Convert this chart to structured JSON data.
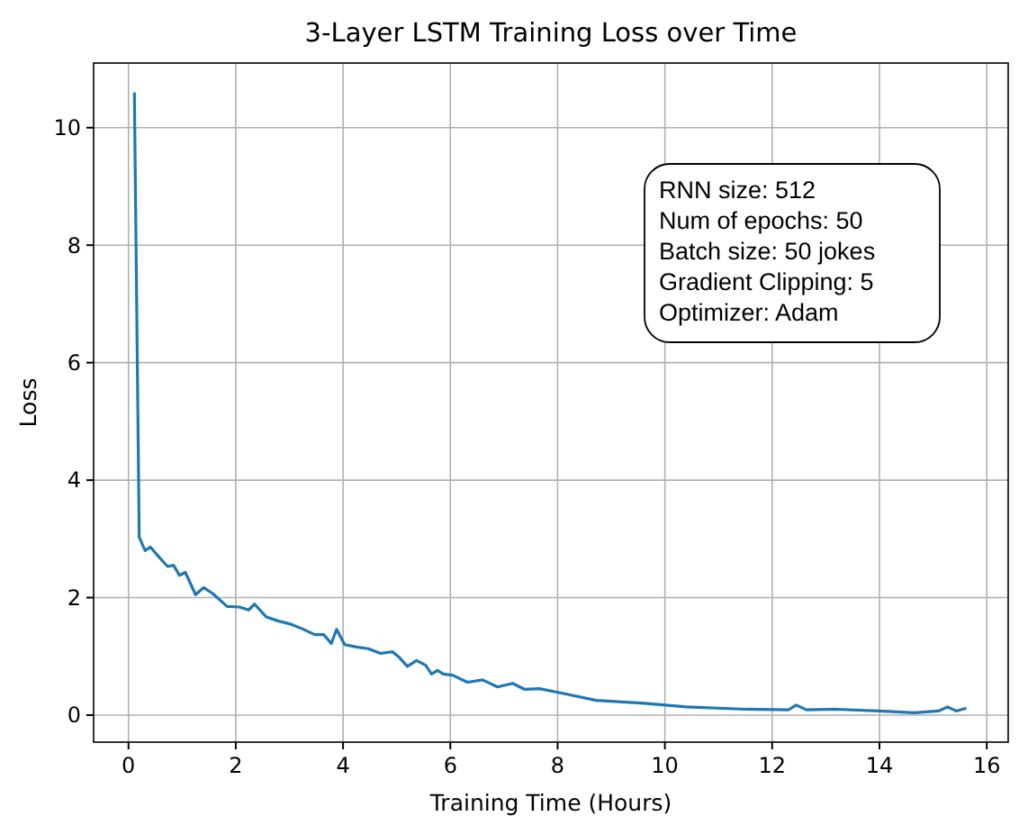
{
  "chart_data": {
    "type": "line",
    "title": "3-Layer LSTM Training Loss over Time",
    "xlabel": "Training Time (Hours)",
    "ylabel": "Loss",
    "xlim": [
      -0.65,
      16.4
    ],
    "ylim": [
      -0.46,
      11.1
    ],
    "xticks": [
      0,
      2,
      4,
      6,
      8,
      10,
      12,
      14,
      16
    ],
    "yticks": [
      0,
      2,
      4,
      6,
      8,
      10
    ],
    "grid": true,
    "annotations": [
      "RNN size: 512\nNum of epochs: 50\nBatch size: 50 jokes\nGradient Clipping: 5\nOptimizer: Adam"
    ],
    "x": [
      0.11,
      0.2,
      0.31,
      0.41,
      0.56,
      0.73,
      0.84,
      0.95,
      1.06,
      1.25,
      1.4,
      1.57,
      1.84,
      2.07,
      2.24,
      2.35,
      2.57,
      2.8,
      3.02,
      3.24,
      3.47,
      3.64,
      3.78,
      3.88,
      4.03,
      4.25,
      4.47,
      4.7,
      4.92,
      5.05,
      5.2,
      5.37,
      5.54,
      5.65,
      5.76,
      5.87,
      6.04,
      6.32,
      6.6,
      6.88,
      7.16,
      7.38,
      7.66,
      8.05,
      8.72,
      9.62,
      10.4,
      11.52,
      12.3,
      12.45,
      12.64,
      13.2,
      13.98,
      14.65,
      15.1,
      15.27,
      15.43,
      15.62
    ],
    "series": [
      {
        "color": "#1f77b4",
        "values": [
          10.6,
          3.03,
          2.8,
          2.86,
          2.7,
          2.53,
          2.55,
          2.38,
          2.43,
          2.05,
          2.17,
          2.07,
          1.85,
          1.84,
          1.79,
          1.89,
          1.67,
          1.6,
          1.55,
          1.47,
          1.37,
          1.37,
          1.22,
          1.46,
          1.2,
          1.16,
          1.13,
          1.05,
          1.08,
          0.98,
          0.83,
          0.93,
          0.85,
          0.7,
          0.76,
          0.7,
          0.68,
          0.56,
          0.6,
          0.48,
          0.54,
          0.44,
          0.45,
          0.38,
          0.25,
          0.2,
          0.14,
          0.1,
          0.09,
          0.17,
          0.09,
          0.1,
          0.07,
          0.04,
          0.07,
          0.14,
          0.07,
          0.12
        ]
      }
    ]
  }
}
